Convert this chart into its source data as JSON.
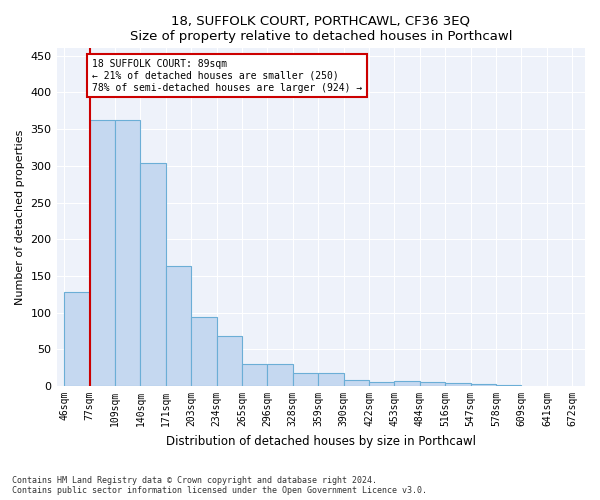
{
  "title1": "18, SUFFOLK COURT, PORTHCAWL, CF36 3EQ",
  "title2": "Size of property relative to detached houses in Porthcawl",
  "xlabel": "Distribution of detached houses by size in Porthcawl",
  "ylabel": "Number of detached properties",
  "bar_values": [
    128,
    363,
    363,
    304,
    163,
    94,
    68,
    30,
    30,
    18,
    18,
    8,
    5,
    7,
    5,
    4,
    3,
    2
  ],
  "bin_labels": [
    "46sqm",
    "77sqm",
    "109sqm",
    "140sqm",
    "171sqm",
    "203sqm",
    "234sqm",
    "265sqm",
    "296sqm",
    "328sqm",
    "359sqm",
    "390sqm",
    "422sqm",
    "453sqm",
    "484sqm",
    "516sqm",
    "547sqm",
    "578sqm",
    "609sqm",
    "641sqm",
    "672sqm"
  ],
  "bar_color": "#C5D8F0",
  "bar_edge_color": "#6BAED6",
  "property_line_color": "#CC0000",
  "annotation_text": "18 SUFFOLK COURT: 89sqm\n← 21% of detached houses are smaller (250)\n78% of semi-detached houses are larger (924) →",
  "annotation_box_color": "#CC0000",
  "ylim": [
    0,
    460
  ],
  "yticks": [
    0,
    50,
    100,
    150,
    200,
    250,
    300,
    350,
    400,
    450
  ],
  "footnote1": "Contains HM Land Registry data © Crown copyright and database right 2024.",
  "footnote2": "Contains public sector information licensed under the Open Government Licence v3.0.",
  "background_color": "#EEF2FA"
}
